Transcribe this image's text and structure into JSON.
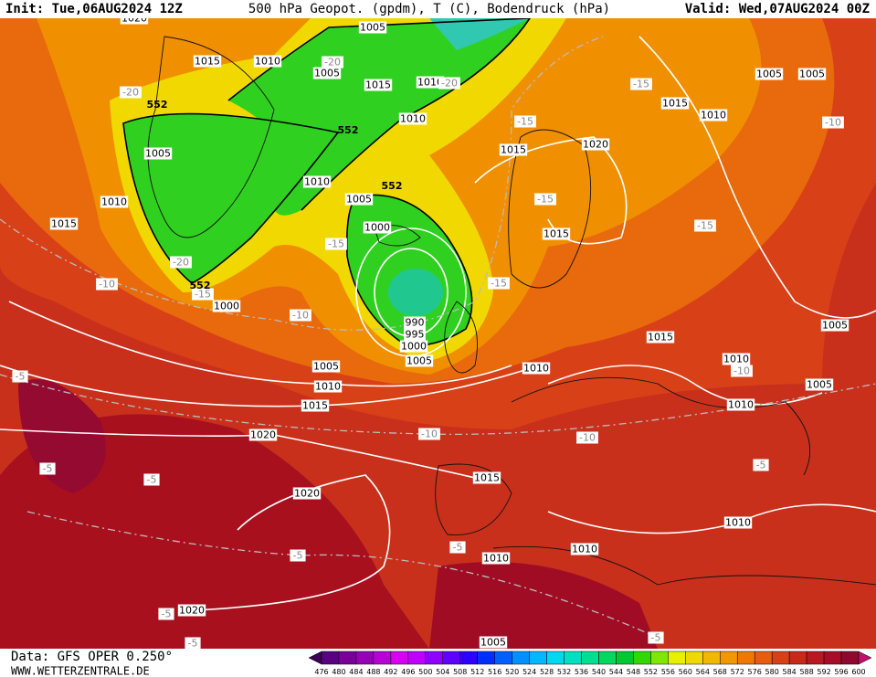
{
  "header": {
    "init": "Init: Tue,06AUG2024 12Z",
    "title": "500 hPa Geopot. (gpdm), T (C), Bodendruck (hPa)",
    "valid": "Valid: Wed,07AUG2024 00Z"
  },
  "footer": {
    "data_source": "Data: GFS OPER 0.250°",
    "website": "WWW.WETTERZENTRALE.DE"
  },
  "colorbar": {
    "labels": [
      476,
      480,
      484,
      488,
      492,
      496,
      500,
      504,
      508,
      512,
      516,
      520,
      524,
      528,
      532,
      536,
      540,
      544,
      548,
      552,
      556,
      560,
      564,
      568,
      572,
      576,
      580,
      584,
      588,
      592,
      596,
      600
    ],
    "colors": [
      "#3a0058",
      "#5a0080",
      "#7a0098",
      "#9800b8",
      "#b800d8",
      "#d800f0",
      "#c000ff",
      "#9000ff",
      "#6000ff",
      "#3000ff",
      "#0030ff",
      "#0060ff",
      "#0090ff",
      "#00b8ff",
      "#00d8f0",
      "#00e0c0",
      "#00e090",
      "#00d860",
      "#00c830",
      "#30d800",
      "#80e800",
      "#e8f000",
      "#f0d800",
      "#f0b800",
      "#f09800",
      "#f07800",
      "#e85c10",
      "#d84018",
      "#c82818",
      "#b81820",
      "#a80c28",
      "#900830",
      "#c0106c"
    ]
  },
  "isobar_labels": [
    "1020",
    "1005",
    "1015",
    "1010",
    "1005",
    "1015",
    "1010",
    "1010",
    "1005",
    "1010",
    "1015",
    "1010",
    "1005",
    "1000",
    "1000",
    "990",
    "995",
    "1000",
    "1005",
    "1005",
    "1010",
    "1015",
    "1020",
    "1020",
    "1015",
    "1010",
    "1015",
    "1015",
    "1015",
    "1020",
    "1015",
    "1010",
    "1005",
    "1005",
    "1005",
    "1010",
    "1005",
    "1010",
    "1010",
    "1010",
    "1010",
    "1020",
    "1005"
  ],
  "temperature_labels": [
    "-20",
    "-20",
    "-20",
    "-15",
    "-15",
    "-10",
    "-15",
    "-15",
    "-15",
    "-20",
    "-10",
    "-15",
    "-10",
    "-15",
    "-10",
    "-5",
    "-10",
    "-10",
    "-5",
    "-5",
    "-5",
    "-5",
    "-5",
    "-5",
    "-5",
    "-5"
  ],
  "height_labels": [
    "552",
    "552",
    "552",
    "552"
  ]
}
